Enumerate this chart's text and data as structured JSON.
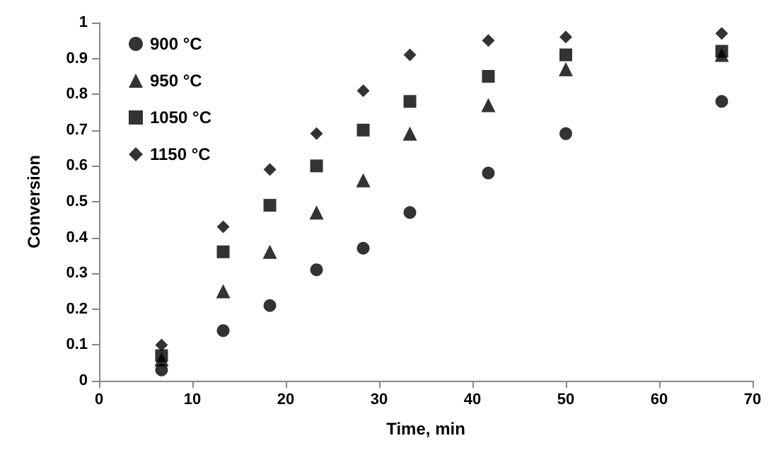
{
  "chart_data": {
    "type": "scatter",
    "xlabel": "Time, min",
    "ylabel": "Conversion",
    "x": [
      6.7,
      13.3,
      18.3,
      23.3,
      28.3,
      33.3,
      41.7,
      50,
      66.7
    ],
    "series": [
      {
        "name": "900 °C",
        "color": "#000000",
        "marker": "circle",
        "values": [
          0.03,
          0.14,
          0.21,
          0.31,
          0.37,
          0.47,
          0.58,
          0.69,
          0.78
        ]
      },
      {
        "name": "950 °C",
        "color": "#000000",
        "marker": "triangle",
        "values": [
          0.06,
          0.25,
          0.36,
          0.47,
          0.56,
          0.69,
          0.77,
          0.87,
          0.91
        ]
      },
      {
        "name": "1050 °C",
        "color": "#000000",
        "marker": "square",
        "values": [
          0.07,
          0.36,
          0.49,
          0.6,
          0.7,
          0.78,
          0.85,
          0.91,
          0.92
        ]
      },
      {
        "name": "1150 °C",
        "color": "#000000",
        "marker": "diamond",
        "values": [
          0.1,
          0.43,
          0.59,
          0.69,
          0.81,
          0.91,
          0.95,
          0.96,
          0.97
        ]
      }
    ],
    "xlim": [
      0,
      70
    ],
    "xticks": [
      0,
      10,
      20,
      30,
      40,
      50,
      60,
      70
    ],
    "ylim": [
      0,
      1
    ],
    "yticks": [
      0,
      0.1,
      0.2,
      0.3,
      0.4,
      0.5,
      0.6,
      0.7,
      0.8,
      0.9,
      1
    ],
    "grid": false,
    "legend": "top left"
  }
}
